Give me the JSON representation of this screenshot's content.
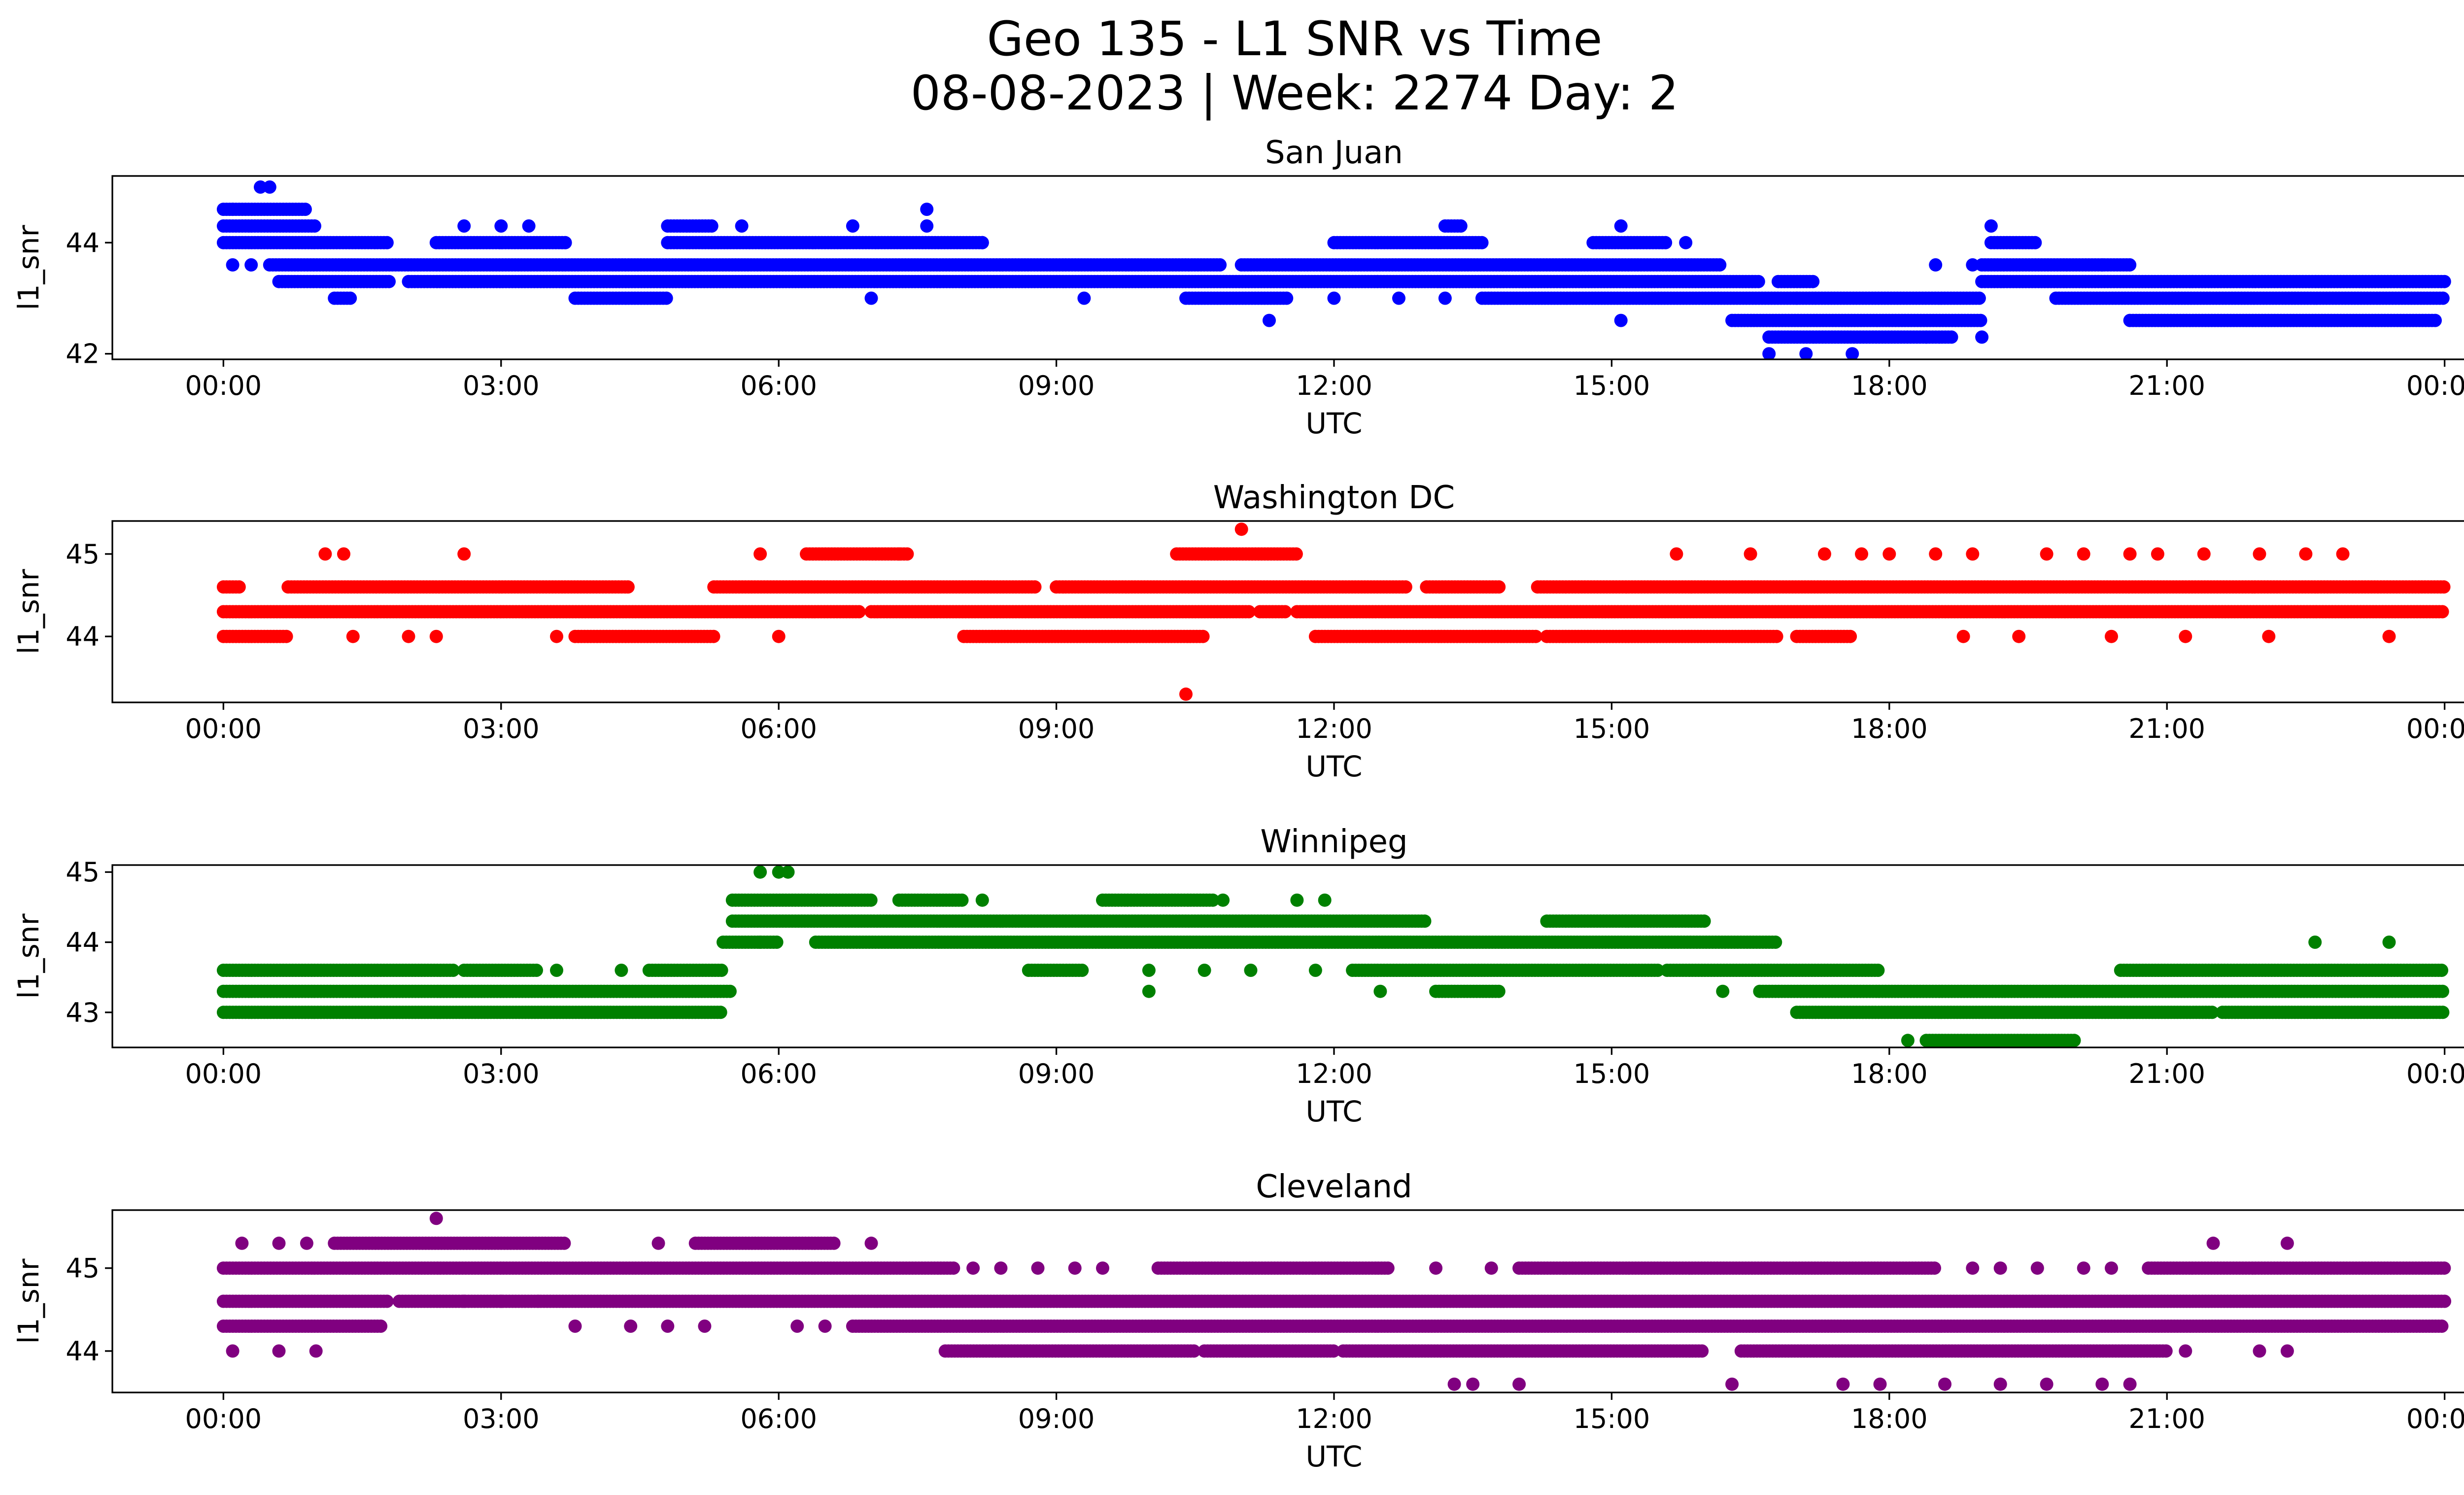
{
  "figure": {
    "title_line1": "Geo 135 - L1 SNR vs Time",
    "title_line2": "08-08-2023 | Week: 2274 Day: 2"
  },
  "chart_data": [
    {
      "type": "scatter",
      "title": "San Juan",
      "xlabel": "UTC",
      "ylabel": "l1_snr",
      "color": "#0000ff",
      "x_unit": "hours UTC",
      "xlim": [
        -1.2,
        25.2
      ],
      "ylim": [
        41.9,
        45.2
      ],
      "xticks": [
        0,
        3,
        6,
        9,
        12,
        15,
        18,
        21,
        24
      ],
      "xtick_labels": [
        "00:00",
        "03:00",
        "06:00",
        "09:00",
        "12:00",
        "15:00",
        "18:00",
        "21:00",
        "00:00"
      ],
      "yticks": [
        42,
        44
      ],
      "ytick_labels": [
        "42",
        "44"
      ],
      "bands": [
        {
          "y": 44.6,
          "segments": [
            [
              0.0,
              0.9
            ]
          ]
        },
        {
          "y": 44.3,
          "segments": [
            [
              0.0,
              1.0
            ],
            [
              4.8,
              5.3
            ],
            [
              13.2,
              13.4
            ]
          ]
        },
        {
          "y": 44.0,
          "segments": [
            [
              0.0,
              1.8
            ],
            [
              2.3,
              3.7
            ],
            [
              4.8,
              8.2
            ],
            [
              12.0,
              13.6
            ],
            [
              14.8,
              15.6
            ],
            [
              19.1,
              19.6
            ]
          ]
        },
        {
          "y": 43.6,
          "segments": [
            [
              0.5,
              10.8
            ],
            [
              11.0,
              16.2
            ],
            [
              19.0,
              20.6
            ]
          ]
        },
        {
          "y": 43.3,
          "segments": [
            [
              0.6,
              1.8
            ],
            [
              2.0,
              16.6
            ],
            [
              16.8,
              17.2
            ],
            [
              19.0,
              24.0
            ]
          ]
        },
        {
          "y": 43.0,
          "segments": [
            [
              1.2,
              1.4
            ],
            [
              3.8,
              4.8
            ],
            [
              10.4,
              11.5
            ],
            [
              13.6,
              17.0
            ],
            [
              17.0,
              19.0
            ],
            [
              19.8,
              24.0
            ]
          ]
        },
        {
          "y": 42.6,
          "segments": [
            [
              16.3,
              19.0
            ],
            [
              20.6,
              23.9
            ]
          ]
        },
        {
          "y": 42.3,
          "segments": [
            [
              16.7,
              18.7
            ]
          ]
        }
      ],
      "points": [
        {
          "x": 0.4,
          "y": 45.0
        },
        {
          "x": 0.5,
          "y": 45.0
        },
        {
          "x": 0.1,
          "y": 44.6
        },
        {
          "x": 7.6,
          "y": 44.6
        },
        {
          "x": 2.6,
          "y": 44.3
        },
        {
          "x": 3.0,
          "y": 44.3
        },
        {
          "x": 3.3,
          "y": 44.3
        },
        {
          "x": 5.6,
          "y": 44.3
        },
        {
          "x": 6.8,
          "y": 44.3
        },
        {
          "x": 7.6,
          "y": 44.3
        },
        {
          "x": 15.1,
          "y": 44.3
        },
        {
          "x": 19.1,
          "y": 44.3
        },
        {
          "x": 8.2,
          "y": 44.0
        },
        {
          "x": 15.8,
          "y": 44.0
        },
        {
          "x": 0.1,
          "y": 43.6
        },
        {
          "x": 0.3,
          "y": 43.6
        },
        {
          "x": 18.5,
          "y": 43.6
        },
        {
          "x": 18.9,
          "y": 43.6
        },
        {
          "x": 20.3,
          "y": 43.6
        },
        {
          "x": 7.0,
          "y": 43.0
        },
        {
          "x": 9.3,
          "y": 43.0
        },
        {
          "x": 12.0,
          "y": 43.0
        },
        {
          "x": 12.7,
          "y": 43.0
        },
        {
          "x": 13.2,
          "y": 43.0
        },
        {
          "x": 11.3,
          "y": 42.6
        },
        {
          "x": 15.1,
          "y": 42.6
        },
        {
          "x": 16.7,
          "y": 42.0
        },
        {
          "x": 17.1,
          "y": 42.0
        },
        {
          "x": 17.6,
          "y": 42.0
        },
        {
          "x": 18.4,
          "y": 42.3
        },
        {
          "x": 19.0,
          "y": 42.3
        }
      ]
    },
    {
      "type": "scatter",
      "title": "Washington DC",
      "xlabel": "UTC",
      "ylabel": "l1_snr",
      "color": "#ff0000",
      "x_unit": "hours UTC",
      "xlim": [
        -1.2,
        25.2
      ],
      "ylim": [
        43.2,
        45.4
      ],
      "xticks": [
        0,
        3,
        6,
        9,
        12,
        15,
        18,
        21,
        24
      ],
      "xtick_labels": [
        "00:00",
        "03:00",
        "06:00",
        "09:00",
        "12:00",
        "15:00",
        "18:00",
        "21:00",
        "00:00"
      ],
      "yticks": [
        44,
        45
      ],
      "ytick_labels": [
        "44",
        "45"
      ],
      "bands": [
        {
          "y": 45.0,
          "segments": [
            [
              6.3,
              7.4
            ],
            [
              10.3,
              11.6
            ]
          ]
        },
        {
          "y": 44.6,
          "segments": [
            [
              0.0,
              0.2
            ],
            [
              0.7,
              4.4
            ],
            [
              5.3,
              8.8
            ],
            [
              9.0,
              12.8
            ],
            [
              13.0,
              13.8
            ],
            [
              14.2,
              24.0
            ]
          ]
        },
        {
          "y": 44.3,
          "segments": [
            [
              0.0,
              6.9
            ],
            [
              7.0,
              11.1
            ],
            [
              11.2,
              11.5
            ],
            [
              11.6,
              24.0
            ]
          ]
        },
        {
          "y": 44.0,
          "segments": [
            [
              0.0,
              0.7
            ],
            [
              3.8,
              5.3
            ],
            [
              8.0,
              10.6
            ],
            [
              11.8,
              14.2
            ],
            [
              14.3,
              16.8
            ],
            [
              17.0,
              17.6
            ]
          ]
        }
      ],
      "points": [
        {
          "x": 1.1,
          "y": 45.0
        },
        {
          "x": 1.3,
          "y": 45.0
        },
        {
          "x": 2.6,
          "y": 45.0
        },
        {
          "x": 5.8,
          "y": 45.0
        },
        {
          "x": 7.3,
          "y": 45.0
        },
        {
          "x": 11.0,
          "y": 45.3
        },
        {
          "x": 15.7,
          "y": 45.0
        },
        {
          "x": 16.5,
          "y": 45.0
        },
        {
          "x": 17.3,
          "y": 45.0
        },
        {
          "x": 17.7,
          "y": 45.0
        },
        {
          "x": 18.0,
          "y": 45.0
        },
        {
          "x": 18.5,
          "y": 45.0
        },
        {
          "x": 18.9,
          "y": 45.0
        },
        {
          "x": 19.7,
          "y": 45.0
        },
        {
          "x": 20.1,
          "y": 45.0
        },
        {
          "x": 20.6,
          "y": 45.0
        },
        {
          "x": 20.9,
          "y": 45.0
        },
        {
          "x": 21.4,
          "y": 45.0
        },
        {
          "x": 22.0,
          "y": 45.0
        },
        {
          "x": 22.5,
          "y": 45.0
        },
        {
          "x": 22.9,
          "y": 45.0
        },
        {
          "x": 1.4,
          "y": 44.0
        },
        {
          "x": 2.0,
          "y": 44.0
        },
        {
          "x": 2.3,
          "y": 44.0
        },
        {
          "x": 3.6,
          "y": 44.0
        },
        {
          "x": 6.0,
          "y": 44.0
        },
        {
          "x": 18.8,
          "y": 44.0
        },
        {
          "x": 19.4,
          "y": 44.0
        },
        {
          "x": 20.4,
          "y": 44.0
        },
        {
          "x": 21.2,
          "y": 44.0
        },
        {
          "x": 22.1,
          "y": 44.0
        },
        {
          "x": 23.4,
          "y": 44.0
        },
        {
          "x": 10.4,
          "y": 43.3
        }
      ]
    },
    {
      "type": "scatter",
      "title": "Winnipeg",
      "xlabel": "UTC",
      "ylabel": "l1_snr",
      "color": "#008000",
      "x_unit": "hours UTC",
      "xlim": [
        -1.2,
        25.2
      ],
      "ylim": [
        42.5,
        45.1
      ],
      "xticks": [
        0,
        3,
        6,
        9,
        12,
        15,
        18,
        21,
        24
      ],
      "xtick_labels": [
        "00:00",
        "03:00",
        "06:00",
        "09:00",
        "12:00",
        "15:00",
        "18:00",
        "21:00",
        "00:00"
      ],
      "yticks": [
        43,
        44,
        45
      ],
      "ytick_labels": [
        "43",
        "44",
        "45"
      ],
      "bands": [
        {
          "y": 44.6,
          "segments": [
            [
              5.5,
              7.0
            ],
            [
              7.3,
              8.0
            ],
            [
              9.5,
              10.7
            ]
          ]
        },
        {
          "y": 44.3,
          "segments": [
            [
              5.5,
              13.0
            ],
            [
              14.3,
              16.0
            ]
          ]
        },
        {
          "y": 44.0,
          "segments": [
            [
              5.4,
              6.0
            ],
            [
              6.4,
              16.8
            ]
          ]
        },
        {
          "y": 43.6,
          "segments": [
            [
              0.0,
              2.5
            ],
            [
              2.6,
              3.4
            ],
            [
              4.6,
              5.4
            ],
            [
              8.7,
              9.3
            ],
            [
              12.2,
              15.5
            ],
            [
              15.6,
              17.9
            ],
            [
              20.5,
              24.0
            ]
          ]
        },
        {
          "y": 43.3,
          "segments": [
            [
              0.0,
              5.5
            ],
            [
              13.1,
              13.8
            ],
            [
              16.6,
              24.0
            ]
          ]
        },
        {
          "y": 43.0,
          "segments": [
            [
              0.0,
              5.4
            ],
            [
              17.0,
              21.5
            ],
            [
              21.6,
              24.0
            ]
          ]
        },
        {
          "y": 42.6,
          "segments": [
            [
              18.4,
              20.0
            ]
          ]
        }
      ],
      "points": [
        {
          "x": 5.8,
          "y": 45.0
        },
        {
          "x": 6.0,
          "y": 45.0
        },
        {
          "x": 6.1,
          "y": 45.0
        },
        {
          "x": 8.2,
          "y": 44.6
        },
        {
          "x": 10.8,
          "y": 44.6
        },
        {
          "x": 11.6,
          "y": 44.6
        },
        {
          "x": 11.9,
          "y": 44.6
        },
        {
          "x": 5.8,
          "y": 44.0
        },
        {
          "x": 3.6,
          "y": 43.6
        },
        {
          "x": 4.3,
          "y": 43.6
        },
        {
          "x": 10.0,
          "y": 43.6
        },
        {
          "x": 10.6,
          "y": 43.6
        },
        {
          "x": 11.1,
          "y": 43.6
        },
        {
          "x": 11.8,
          "y": 43.6
        },
        {
          "x": 10.0,
          "y": 43.3
        },
        {
          "x": 12.5,
          "y": 43.3
        },
        {
          "x": 16.2,
          "y": 43.3
        },
        {
          "x": 18.2,
          "y": 42.6
        },
        {
          "x": 22.6,
          "y": 44.0
        },
        {
          "x": 23.4,
          "y": 44.0
        }
      ]
    },
    {
      "type": "scatter",
      "title": "Cleveland",
      "xlabel": "UTC",
      "ylabel": "l1_snr",
      "color": "#800080",
      "x_unit": "hours UTC",
      "xlim": [
        -1.2,
        25.2
      ],
      "ylim": [
        43.5,
        45.7
      ],
      "xticks": [
        0,
        3,
        6,
        9,
        12,
        15,
        18,
        21,
        24
      ],
      "xtick_labels": [
        "00:00",
        "03:00",
        "06:00",
        "09:00",
        "12:00",
        "15:00",
        "18:00",
        "21:00",
        "00:00"
      ],
      "yticks": [
        44,
        45
      ],
      "ytick_labels": [
        "44",
        "45"
      ],
      "bands": [
        {
          "y": 45.3,
          "segments": [
            [
              1.2,
              3.7
            ],
            [
              5.1,
              6.6
            ]
          ]
        },
        {
          "y": 45.0,
          "segments": [
            [
              0.0,
              7.9
            ],
            [
              10.1,
              12.6
            ],
            [
              14.0,
              18.5
            ],
            [
              20.8,
              24.0
            ]
          ]
        },
        {
          "y": 44.6,
          "segments": [
            [
              0.0,
              1.8
            ],
            [
              1.9,
              24.0
            ]
          ]
        },
        {
          "y": 44.3,
          "segments": [
            [
              0.0,
              1.7
            ],
            [
              6.8,
              24.0
            ]
          ]
        },
        {
          "y": 44.0,
          "segments": [
            [
              7.8,
              10.5
            ],
            [
              10.6,
              12.0
            ],
            [
              12.1,
              16.0
            ],
            [
              16.4,
              21.0
            ]
          ]
        }
      ],
      "points": [
        {
          "x": 2.3,
          "y": 45.6
        },
        {
          "x": 0.2,
          "y": 45.3
        },
        {
          "x": 0.6,
          "y": 45.3
        },
        {
          "x": 0.9,
          "y": 45.3
        },
        {
          "x": 4.7,
          "y": 45.3
        },
        {
          "x": 7.0,
          "y": 45.3
        },
        {
          "x": 21.5,
          "y": 45.3
        },
        {
          "x": 22.3,
          "y": 45.3
        },
        {
          "x": 8.1,
          "y": 45.0
        },
        {
          "x": 8.4,
          "y": 45.0
        },
        {
          "x": 8.8,
          "y": 45.0
        },
        {
          "x": 9.2,
          "y": 45.0
        },
        {
          "x": 9.5,
          "y": 45.0
        },
        {
          "x": 13.1,
          "y": 45.0
        },
        {
          "x": 13.7,
          "y": 45.0
        },
        {
          "x": 18.9,
          "y": 45.0
        },
        {
          "x": 19.2,
          "y": 45.0
        },
        {
          "x": 19.6,
          "y": 45.0
        },
        {
          "x": 20.1,
          "y": 45.0
        },
        {
          "x": 20.4,
          "y": 45.0
        },
        {
          "x": 2.6,
          "y": 44.6
        },
        {
          "x": 3.0,
          "y": 44.6
        },
        {
          "x": 3.4,
          "y": 44.6
        },
        {
          "x": 3.8,
          "y": 44.3
        },
        {
          "x": 4.4,
          "y": 44.3
        },
        {
          "x": 4.8,
          "y": 44.3
        },
        {
          "x": 5.2,
          "y": 44.3
        },
        {
          "x": 6.2,
          "y": 44.3
        },
        {
          "x": 6.5,
          "y": 44.3
        },
        {
          "x": 0.1,
          "y": 44.0
        },
        {
          "x": 0.6,
          "y": 44.0
        },
        {
          "x": 1.0,
          "y": 44.0
        },
        {
          "x": 21.2,
          "y": 44.0
        },
        {
          "x": 22.0,
          "y": 44.0
        },
        {
          "x": 22.3,
          "y": 44.0
        },
        {
          "x": 13.3,
          "y": 43.6
        },
        {
          "x": 13.5,
          "y": 43.6
        },
        {
          "x": 14.0,
          "y": 43.6
        },
        {
          "x": 16.3,
          "y": 43.6
        },
        {
          "x": 17.5,
          "y": 43.6
        },
        {
          "x": 17.9,
          "y": 43.6
        },
        {
          "x": 18.6,
          "y": 43.6
        },
        {
          "x": 19.2,
          "y": 43.6
        },
        {
          "x": 19.7,
          "y": 43.6
        },
        {
          "x": 20.3,
          "y": 43.6
        },
        {
          "x": 20.6,
          "y": 43.6
        }
      ]
    }
  ]
}
